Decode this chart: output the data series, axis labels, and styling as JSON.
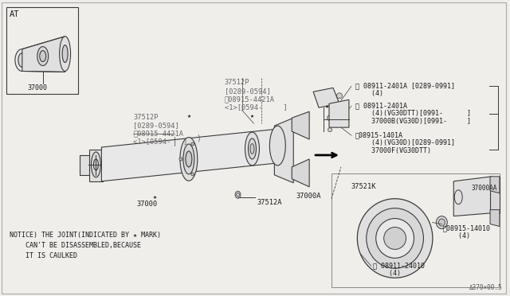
{
  "bg_color": "#f0eeeb",
  "line_color": "#3a3a3a",
  "text_color": "#1a1a1a",
  "gray_text": "#666666",
  "white": "#ffffff",
  "notice_line1": "NOTICE) THE JOINT(INDICATED BY ★ MARK)",
  "notice_line2": "    CAN'T BE DISASSEMBLED,BECAUSE",
  "notice_line3": "    IT IS CAULKED",
  "footer": "Δ370×00.5",
  "at_label": "AT",
  "label_37000_inset": "37000",
  "label_37000": "37000",
  "label_37000A": "37000A",
  "label_37000AA": "37000AA",
  "label_37512A": "37512A",
  "label_37521K": "37521K",
  "label_37512P_1a": "37512P",
  "label_37512P_1b": "[0289-0594]",
  "label_37512P_1c": "ⓜ08915-4421A",
  "label_37512P_1d": "<1>[0594-     ]",
  "label_37512P_2a": "37512P",
  "label_37512P_2b": "[0289-0594]",
  "label_37512P_2c": "ⓜ08915-4421A",
  "label_37512P_2d": "<1>[0594-   ]",
  "label_N1a": "Ⓝ 08911-2401A [0289-0991]",
  "label_N1b": "    (4)",
  "label_N2a": "Ⓝ 08911-2401A",
  "label_N2b": "    (4)(VG30DTT)[0991-      ]",
  "label_N2c": "    37000B(VG30D)[0991-     ]",
  "label_M1a": "ⓜ08915-1401A",
  "label_M1b": "    (4)(VG30D)[0289-0991]",
  "label_M1c": "    37000F(VG30DTT)",
  "label_M2a": "ⓜ08915-14010",
  "label_M2b": "    (4)",
  "label_N3a": "Ⓝ 08911-24010",
  "label_N3b": "    (4)"
}
